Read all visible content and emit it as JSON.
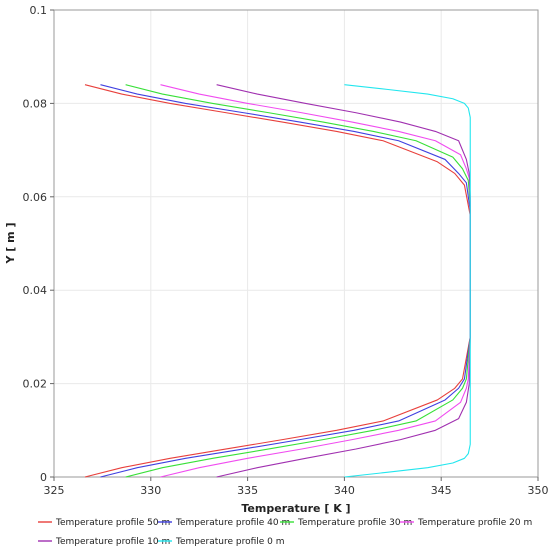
{
  "chart_data": {
    "type": "line",
    "title": "",
    "xlabel": "Temperature [ K ]",
    "ylabel": "Y [ m ]",
    "xlim": [
      325,
      350
    ],
    "ylim": [
      0,
      0.1
    ],
    "xticks": [
      "325",
      "330",
      "335",
      "340",
      "345",
      "350"
    ],
    "yticks": [
      "0",
      "0.02",
      "0.04",
      "0.06",
      "0.08",
      "0.1"
    ],
    "grid": true,
    "legend_position": "bottom",
    "series": [
      {
        "name": "Temperature profile 50 m",
        "color": "#e8403c",
        "points": [
          [
            326.6,
            0.0
          ],
          [
            328.5,
            0.002
          ],
          [
            331.0,
            0.004
          ],
          [
            333.9,
            0.006
          ],
          [
            336.8,
            0.008
          ],
          [
            339.6,
            0.01
          ],
          [
            342.0,
            0.012
          ],
          [
            344.8,
            0.0165
          ],
          [
            345.7,
            0.019
          ],
          [
            346.1,
            0.021
          ],
          [
            346.5,
            0.03
          ],
          [
            346.5,
            0.056
          ],
          [
            346.2,
            0.0625
          ],
          [
            345.7,
            0.065
          ],
          [
            344.8,
            0.0675
          ],
          [
            342.0,
            0.072
          ],
          [
            339.6,
            0.074
          ],
          [
            336.8,
            0.076
          ],
          [
            333.9,
            0.078
          ],
          [
            331.0,
            0.08
          ],
          [
            328.5,
            0.082
          ],
          [
            326.6,
            0.084
          ]
        ]
      },
      {
        "name": "Temperature profile 40 m",
        "color": "#4040e0",
        "points": [
          [
            327.4,
            0.0
          ],
          [
            329.3,
            0.002
          ],
          [
            331.8,
            0.004
          ],
          [
            334.8,
            0.006
          ],
          [
            337.7,
            0.008
          ],
          [
            340.5,
            0.01
          ],
          [
            342.8,
            0.012
          ],
          [
            345.2,
            0.0165
          ],
          [
            345.9,
            0.019
          ],
          [
            346.2,
            0.021
          ],
          [
            346.5,
            0.03
          ],
          [
            346.5,
            0.057
          ],
          [
            346.3,
            0.063
          ],
          [
            345.9,
            0.065
          ],
          [
            345.2,
            0.068
          ],
          [
            342.8,
            0.072
          ],
          [
            340.5,
            0.074
          ],
          [
            337.7,
            0.076
          ],
          [
            334.8,
            0.078
          ],
          [
            331.8,
            0.08
          ],
          [
            329.3,
            0.082
          ],
          [
            327.4,
            0.084
          ]
        ]
      },
      {
        "name": "Temperature profile 30 m",
        "color": "#38e038",
        "points": [
          [
            328.7,
            0.0
          ],
          [
            330.6,
            0.002
          ],
          [
            333.2,
            0.004
          ],
          [
            336.1,
            0.006
          ],
          [
            338.9,
            0.008
          ],
          [
            341.5,
            0.01
          ],
          [
            343.7,
            0.012
          ],
          [
            345.6,
            0.0165
          ],
          [
            346.1,
            0.019
          ],
          [
            346.3,
            0.021
          ],
          [
            346.5,
            0.03
          ],
          [
            346.5,
            0.058
          ],
          [
            346.4,
            0.0635
          ],
          [
            346.1,
            0.066
          ],
          [
            345.6,
            0.0685
          ],
          [
            343.7,
            0.072
          ],
          [
            341.5,
            0.074
          ],
          [
            338.9,
            0.076
          ],
          [
            336.1,
            0.078
          ],
          [
            333.2,
            0.08
          ],
          [
            330.6,
            0.082
          ],
          [
            328.7,
            0.084
          ]
        ]
      },
      {
        "name": "Temperature profile 20 m",
        "color": "#f04cf0",
        "points": [
          [
            330.5,
            0.0
          ],
          [
            332.5,
            0.002
          ],
          [
            335.0,
            0.004
          ],
          [
            337.8,
            0.006
          ],
          [
            340.4,
            0.008
          ],
          [
            342.8,
            0.01
          ],
          [
            344.7,
            0.012
          ],
          [
            346.0,
            0.016
          ],
          [
            346.3,
            0.019
          ],
          [
            346.4,
            0.021
          ],
          [
            346.5,
            0.03
          ],
          [
            346.5,
            0.059
          ],
          [
            346.45,
            0.064
          ],
          [
            346.3,
            0.066
          ],
          [
            346.0,
            0.069
          ],
          [
            344.7,
            0.072
          ],
          [
            342.8,
            0.074
          ],
          [
            340.4,
            0.076
          ],
          [
            337.8,
            0.078
          ],
          [
            335.0,
            0.08
          ],
          [
            332.5,
            0.082
          ],
          [
            330.5,
            0.084
          ]
        ]
      },
      {
        "name": "Temperature profile 10 m",
        "color": "#a030b0",
        "points": [
          [
            333.4,
            0.0
          ],
          [
            335.5,
            0.002
          ],
          [
            338.0,
            0.004
          ],
          [
            340.6,
            0.006
          ],
          [
            342.9,
            0.008
          ],
          [
            344.7,
            0.01
          ],
          [
            345.9,
            0.0125
          ],
          [
            346.3,
            0.016
          ],
          [
            346.45,
            0.02
          ],
          [
            346.5,
            0.03
          ],
          [
            346.5,
            0.06
          ],
          [
            346.45,
            0.065
          ],
          [
            346.3,
            0.068
          ],
          [
            345.9,
            0.072
          ],
          [
            344.7,
            0.074
          ],
          [
            342.9,
            0.076
          ],
          [
            340.6,
            0.078
          ],
          [
            338.0,
            0.08
          ],
          [
            335.5,
            0.082
          ],
          [
            333.4,
            0.084
          ]
        ]
      },
      {
        "name": "Temperature profile 0 m",
        "color": "#22e6ee",
        "points": [
          [
            340.0,
            0.0
          ],
          [
            342.2,
            0.001
          ],
          [
            344.3,
            0.002
          ],
          [
            345.6,
            0.003
          ],
          [
            346.2,
            0.004
          ],
          [
            346.4,
            0.005
          ],
          [
            346.5,
            0.007
          ],
          [
            346.5,
            0.077
          ],
          [
            346.4,
            0.079
          ],
          [
            346.2,
            0.08
          ],
          [
            345.6,
            0.081
          ],
          [
            344.3,
            0.082
          ],
          [
            342.2,
            0.083
          ],
          [
            340.0,
            0.084
          ]
        ]
      }
    ]
  }
}
